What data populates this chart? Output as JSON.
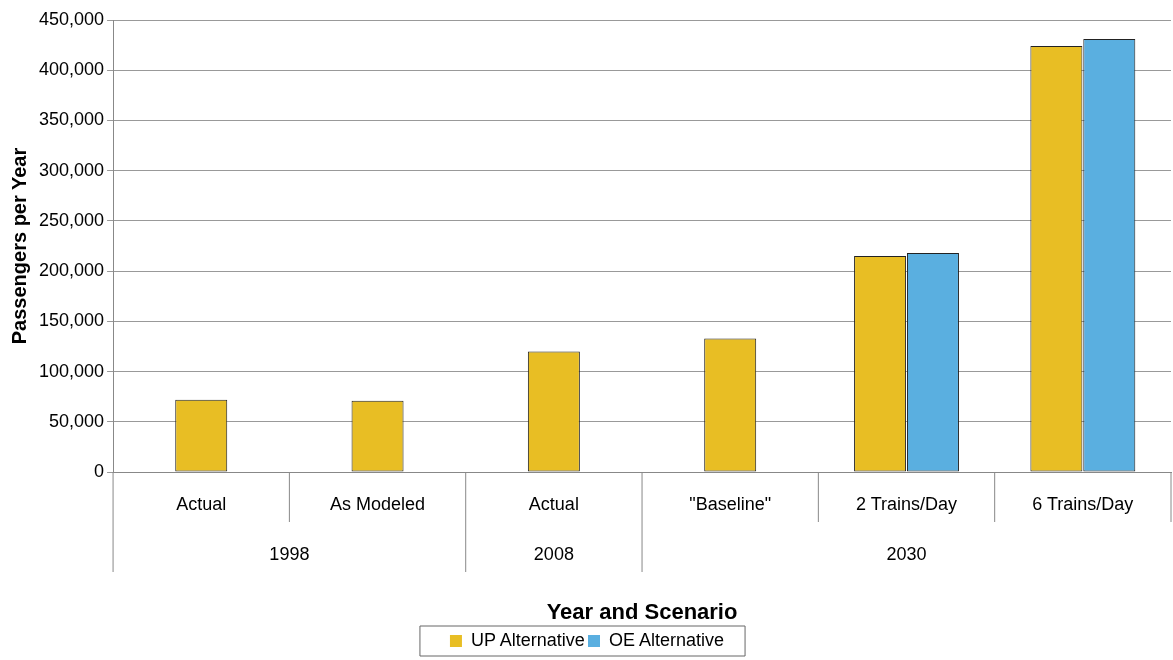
{
  "chart_data": {
    "type": "bar",
    "xlabel": "Year and Scenario",
    "ylabel": "Passengers per Year",
    "categories": [
      "Actual",
      "As Modeled",
      "Actual",
      "\"Baseline\"",
      "2 Trains/Day",
      "6 Trains/Day"
    ],
    "series": [
      {
        "name": "UP Alternative",
        "color": "#e8be24",
        "values": [
          72000,
          71000,
          120000,
          133000,
          215000,
          424000
        ]
      },
      {
        "name": "OE Alternative",
        "color": "#5aafe0",
        "values": [
          null,
          null,
          null,
          null,
          218000,
          431000
        ]
      }
    ],
    "ylim": [
      0,
      450000
    ],
    "yticks": [
      0,
      {
        "value": 50000,
        "label": "50,000"
      },
      {
        "value": 100000,
        "label": "100,000"
      },
      {
        "value": 150000,
        "label": "150,000"
      },
      {
        "value": 200000,
        "label": "200,000"
      },
      {
        "value": 250000,
        "label": "250,000"
      },
      {
        "value": 300000,
        "label": "300,000"
      },
      {
        "value": 350000,
        "label": "350,000"
      },
      {
        "value": 400000,
        "label": "400,000"
      },
      {
        "value": 450000,
        "label": "450,000"
      }
    ],
    "grid": "y",
    "legend": "bottom",
    "annotations": [
      "1998",
      "2008",
      "2030"
    ]
  }
}
